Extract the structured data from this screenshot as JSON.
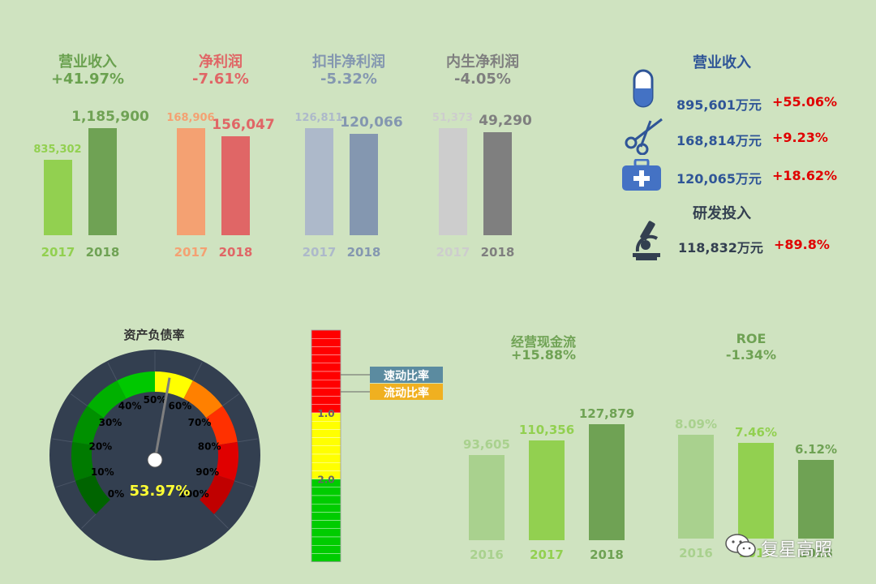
{
  "colors": {
    "background": "#cfe3c0",
    "green_light": "#92d050",
    "green_dark": "#6fa254",
    "orange_light": "#f4a172",
    "red_bar": "#e06666",
    "blue_light": "#adb9ca",
    "blue_dark": "#8497b0",
    "gray_light": "#cdcdcd",
    "gray_dark": "#7f7f7f",
    "navy": "#2f5597",
    "red_text": "#e00000",
    "gauge_ring": "#333f50"
  },
  "top_charts": [
    {
      "title": "营业收入",
      "change": "+41.97%",
      "title_color": "#6aa14f",
      "categories": [
        "2017",
        "2018"
      ],
      "values": [
        835302,
        1185900
      ],
      "labels": [
        "835,302",
        "1,185,900"
      ],
      "bar_colors": [
        "#92d050",
        "#6fa254"
      ],
      "label_colors": [
        "#92d050",
        "#6fa254"
      ],
      "year_colors": [
        "#92d050",
        "#6fa254"
      ]
    },
    {
      "title": "净利润",
      "change": "-7.61%",
      "title_color": "#e06666",
      "categories": [
        "2017",
        "2018"
      ],
      "values": [
        168906,
        156047
      ],
      "labels": [
        "168,906",
        "156,047"
      ],
      "bar_colors": [
        "#f4a172",
        "#e06666"
      ],
      "label_colors": [
        "#f4a172",
        "#e06666"
      ],
      "year_colors": [
        "#f4a172",
        "#e06666"
      ]
    },
    {
      "title": "扣非净利润",
      "change": "-5.32%",
      "title_color": "#8497b0",
      "categories": [
        "2017",
        "2018"
      ],
      "values": [
        126811,
        120066
      ],
      "labels": [
        "126,811",
        "120,066"
      ],
      "bar_colors": [
        "#adb9ca",
        "#8497b0"
      ],
      "label_colors": [
        "#adb9ca",
        "#8497b0"
      ],
      "year_colors": [
        "#adb9ca",
        "#8497b0"
      ]
    },
    {
      "title": "内生净利润",
      "change": "-4.05%",
      "title_color": "#7f7f7f",
      "categories": [
        "2017",
        "2018"
      ],
      "values": [
        51373,
        49290
      ],
      "labels": [
        "51,373",
        "49,290"
      ],
      "bar_colors": [
        "#cdcdcd",
        "#7f7f7f"
      ],
      "label_colors": [
        "#cdcdcd",
        "#7f7f7f"
      ],
      "year_colors": [
        "#cdcdcd",
        "#7f7f7f"
      ]
    }
  ],
  "revenue_panel": {
    "title": "营业收入",
    "items": [
      {
        "icon": "capsule-icon",
        "value": "895,601万元",
        "change": "+55.06%"
      },
      {
        "icon": "scissors-icon",
        "value": "168,814万元",
        "change": "+9.23%"
      },
      {
        "icon": "medical-kit-icon",
        "value": "120,065万元",
        "change": "+18.62%"
      }
    ],
    "rd_title": "研发投入",
    "rd_item": {
      "icon": "microscope-icon",
      "value": "118,832万元",
      "change": "+89.8%"
    }
  },
  "gauge": {
    "title": "资产负债率",
    "value": 53.97,
    "value_label": "53.97%",
    "ticks": [
      "0%",
      "10%",
      "20%",
      "30%",
      "40%",
      "50%",
      "60%",
      "70%",
      "80%",
      "90%",
      "100%"
    ],
    "segment_colors": [
      "#006400",
      "#007a00",
      "#009000",
      "#00b000",
      "#00c800",
      "#ffff00",
      "#ff8000",
      "#ff3000",
      "#e00000",
      "#c00000"
    ]
  },
  "ratio_bar": {
    "legend": [
      "速动比率",
      "流动比率"
    ],
    "legend_colors": [
      "#5b8ba0",
      "#f0b020"
    ],
    "ticks": [
      "1.0",
      "2.0"
    ],
    "zones": [
      {
        "from": 0,
        "to": 10,
        "color": "#ff0000"
      },
      {
        "from": 10,
        "to": 18,
        "color": "#ffff00"
      },
      {
        "from": 18,
        "to": 28,
        "color": "#00cc00"
      }
    ]
  },
  "cash_flow": {
    "title": "经营现金流",
    "change": "+15.88%",
    "categories": [
      "2016",
      "2017",
      "2018"
    ],
    "values": [
      93605,
      110356,
      127879
    ],
    "labels": [
      "93,605",
      "110,356",
      "127,879"
    ],
    "bar_colors": [
      "#a9d18e",
      "#92d050",
      "#6fa254"
    ],
    "label_colors": [
      "#a9d18e",
      "#92d050",
      "#6fa254"
    ],
    "year_colors": [
      "#a9d18e",
      "#92d050",
      "#6fa254"
    ]
  },
  "roe": {
    "title": "ROE",
    "change": "-1.34%",
    "categories": [
      "2016",
      "2017",
      "2018"
    ],
    "values": [
      8.09,
      7.46,
      6.12
    ],
    "labels": [
      "8.09%",
      "7.46%",
      "6.12%"
    ],
    "bar_colors": [
      "#a9d18e",
      "#92d050",
      "#6fa254"
    ],
    "label_colors": [
      "#a9d18e",
      "#92d050",
      "#6fa254"
    ],
    "year_colors": [
      "#a9d18e",
      "#92d050",
      "#6fa254"
    ]
  },
  "watermark": "复星高照"
}
